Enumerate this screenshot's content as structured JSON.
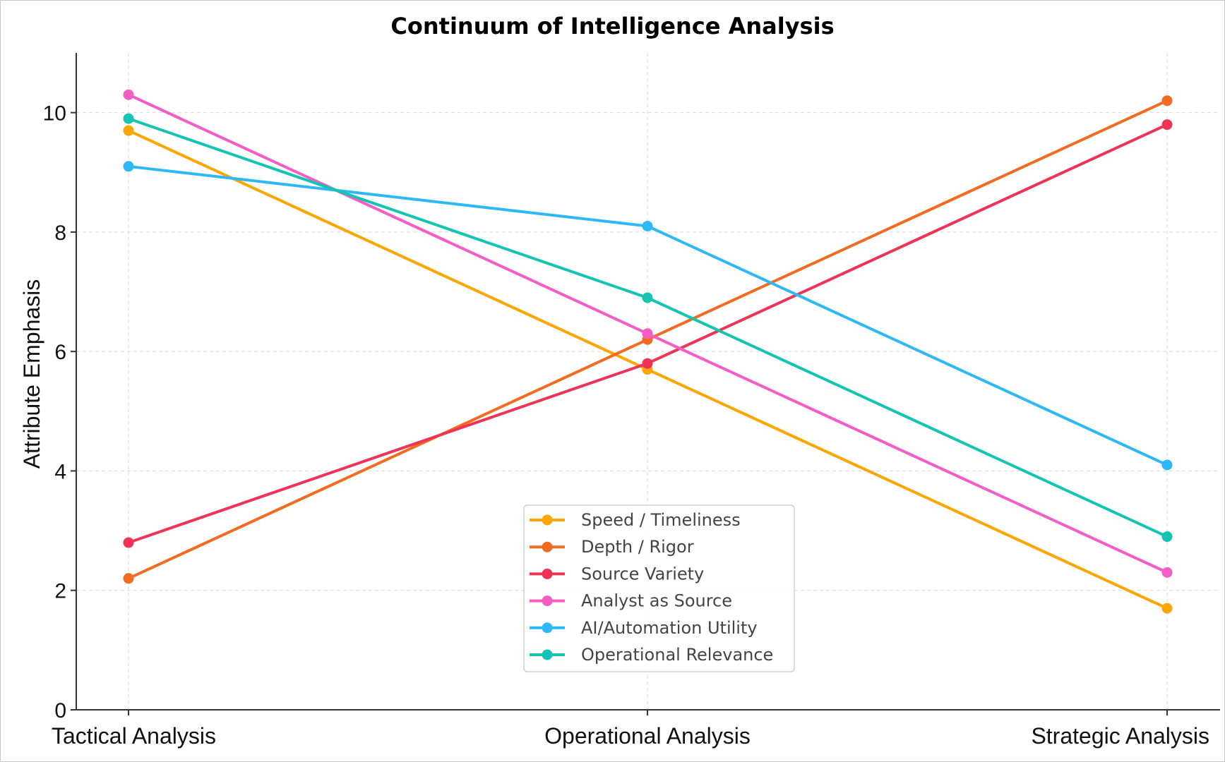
{
  "chart_data": {
    "type": "line",
    "title": "Continuum of Intelligence Analysis",
    "xlabel": "",
    "ylabel": "Attribute Emphasis",
    "categories": [
      "Tactical Analysis",
      "Operational Analysis",
      "Strategic Analysis"
    ],
    "ylim": [
      0,
      11
    ],
    "yticks": [
      0,
      2,
      4,
      6,
      8,
      10
    ],
    "grid": true,
    "legend_position": "lower-center",
    "series": [
      {
        "name": "Speed / Timeliness",
        "color": "#FFA500",
        "values": [
          9.7,
          5.7,
          1.7
        ]
      },
      {
        "name": "Depth / Rigor",
        "color": "#F26B21",
        "values": [
          2.2,
          6.2,
          10.2
        ]
      },
      {
        "name": "Source Variety",
        "color": "#EE3357",
        "values": [
          2.8,
          5.8,
          9.8
        ]
      },
      {
        "name": "Analyst as Source",
        "color": "#F45CC6",
        "values": [
          10.3,
          6.3,
          2.3
        ]
      },
      {
        "name": "AI/Automation Utility",
        "color": "#2EB8FA",
        "values": [
          9.1,
          8.1,
          4.1
        ]
      },
      {
        "name": "Operational Relevance",
        "color": "#14C4B2",
        "values": [
          9.9,
          6.9,
          2.9
        ]
      }
    ]
  }
}
